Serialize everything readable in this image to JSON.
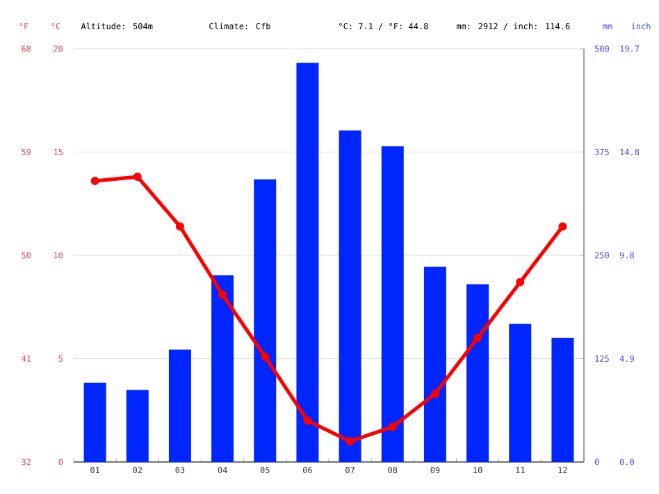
{
  "chart_data": {
    "type": "bar",
    "categories": [
      "01",
      "02",
      "03",
      "04",
      "05",
      "06",
      "07",
      "08",
      "09",
      "10",
      "11",
      "12"
    ],
    "series": [
      {
        "type": "bar",
        "axis": "y2",
        "color": "#0026ff",
        "values": [
          96,
          87,
          136,
          226,
          342,
          483,
          401,
          382,
          236,
          215,
          167,
          150
        ]
      },
      {
        "type": "line",
        "axis": "y",
        "color": "#ff0000",
        "values": [
          13.6,
          13.8,
          11.4,
          8.1,
          5.1,
          2.0,
          1.0,
          1.7,
          3.3,
          6.0,
          8.7,
          11.4
        ]
      }
    ],
    "marker": "circle",
    "ylabel": "°C",
    "ylim": [
      0,
      20
    ],
    "yticks": [
      0,
      5,
      10,
      15,
      20
    ],
    "y2label": "mm",
    "y2lim": [
      0,
      500
    ],
    "y2ticks": [
      0,
      125,
      250,
      375,
      500
    ],
    "y3label": "°F",
    "y3lim": [
      32,
      68
    ],
    "y3ticks": [
      32,
      41,
      50,
      59,
      68
    ],
    "grid": "y",
    "annotations": [
      "Altitude: 504m",
      "Climate: Cfb",
      "°C: 7.1 / °F: 44.8",
      "mm: 2912 / inch: 114.6",
      "inch",
      "0.0",
      "4.9",
      "9.8",
      "14.8",
      "19.7"
    ]
  }
}
